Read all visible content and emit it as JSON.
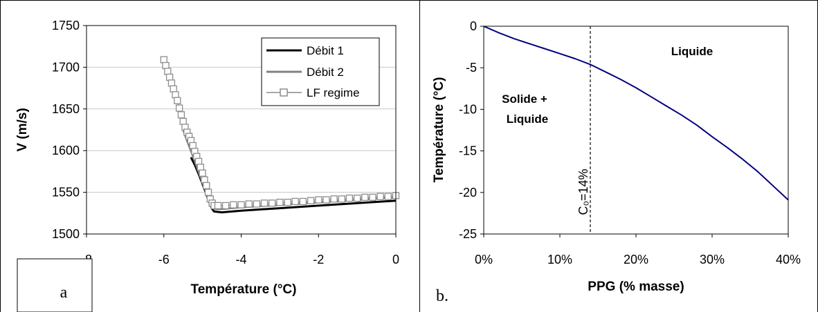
{
  "panels": {
    "a": {
      "label": "a"
    },
    "b": {
      "label": "b."
    }
  },
  "chart_data": [
    {
      "type": "line",
      "xlabel": "Température (°C)",
      "ylabel": "V (m/s)",
      "xlim": [
        -8,
        0
      ],
      "ylim": [
        1500,
        1750
      ],
      "xticks": [
        "-8",
        "-6",
        "-4",
        "-2",
        "0"
      ],
      "yticks": [
        "1500",
        "1550",
        "1600",
        "1650",
        "1700",
        "1750"
      ],
      "grid": "horizontal",
      "legend": "top-right",
      "series": [
        {
          "name": "Débit 1",
          "color": "#000000",
          "x": [
            -5.3,
            -5.2,
            -5.1,
            -5.0,
            -4.9,
            -4.8,
            -4.75,
            -4.7,
            -4.5,
            -4.0,
            -3.0,
            -2.0,
            -1.0,
            0.0
          ],
          "y": [
            1592,
            1583,
            1572,
            1560,
            1548,
            1535,
            1530,
            1527,
            1526,
            1528,
            1531,
            1534,
            1537,
            1540
          ]
        },
        {
          "name": "Débit 2",
          "color": "#808080",
          "x": [
            -5.5,
            -5.4,
            -5.3,
            -5.2,
            -5.1,
            -5.0,
            -4.9,
            -4.8,
            -4.75,
            -4.7,
            -4.5,
            -4.0,
            -3.0,
            -2.0,
            -1.0,
            0.0
          ],
          "y": [
            1625,
            1612,
            1600,
            1588,
            1575,
            1562,
            1550,
            1538,
            1532,
            1530,
            1530,
            1532,
            1535,
            1538,
            1541,
            1544
          ]
        },
        {
          "name": "LF regime",
          "color": "#a6a6a6",
          "marker": "square",
          "x": [
            -6.0,
            -5.95,
            -5.9,
            -5.85,
            -5.8,
            -5.75,
            -5.7,
            -5.65,
            -5.6,
            -5.55,
            -5.5,
            -5.45,
            -5.4,
            -5.35,
            -5.3,
            -5.25,
            -5.2,
            -5.15,
            -5.1,
            -5.05,
            -5.0,
            -4.95,
            -4.9,
            -4.85,
            -4.8,
            -4.75,
            -4.7,
            -4.6,
            -4.4,
            -4.2,
            -4.0,
            -3.8,
            -3.6,
            -3.4,
            -3.2,
            -3.0,
            -2.8,
            -2.6,
            -2.4,
            -2.2,
            -2.0,
            -1.8,
            -1.6,
            -1.4,
            -1.2,
            -1.0,
            -0.8,
            -0.6,
            -0.4,
            -0.2,
            0.0
          ],
          "y": [
            1709,
            1702,
            1695,
            1688,
            1681,
            1674,
            1667,
            1660,
            1651,
            1643,
            1635,
            1628,
            1622,
            1617,
            1612,
            1606,
            1599,
            1593,
            1587,
            1580,
            1573,
            1565,
            1558,
            1550,
            1542,
            1537,
            1534,
            1534,
            1534,
            1535,
            1535,
            1536,
            1536,
            1537,
            1537,
            1538,
            1538,
            1539,
            1539,
            1540,
            1541,
            1541,
            1542,
            1542,
            1543,
            1543,
            1544,
            1544,
            1545,
            1545,
            1546
          ]
        }
      ]
    },
    {
      "type": "line",
      "xlabel": "PPG (% masse)",
      "ylabel": "Température (°C)",
      "xlim": [
        0,
        40
      ],
      "ylim": [
        -25,
        0
      ],
      "xticks": [
        "0%",
        "10%",
        "20%",
        "30%",
        "40%"
      ],
      "yticks": [
        "-25",
        "-20",
        "-15",
        "-10",
        "-5",
        "0"
      ],
      "grid": "none",
      "series": [
        {
          "color": "#000080",
          "x": [
            0,
            2,
            4,
            6,
            8,
            10,
            12,
            14,
            16,
            18,
            20,
            22,
            24,
            26,
            28,
            30,
            32,
            34,
            36,
            38,
            40
          ],
          "y": [
            0,
            -0.8,
            -1.5,
            -2.1,
            -2.7,
            -3.3,
            -3.9,
            -4.6,
            -5.5,
            -6.4,
            -7.4,
            -8.5,
            -9.6,
            -10.7,
            -11.9,
            -13.3,
            -14.6,
            -16.0,
            -17.5,
            -19.2,
            -20.9
          ]
        }
      ],
      "vline": {
        "x": 14,
        "label": "C₀=14%"
      },
      "annotations": [
        {
          "lines": [
            "Solide +",
            "Liquide"
          ]
        },
        {
          "lines": [
            "Liquide"
          ]
        }
      ]
    }
  ]
}
